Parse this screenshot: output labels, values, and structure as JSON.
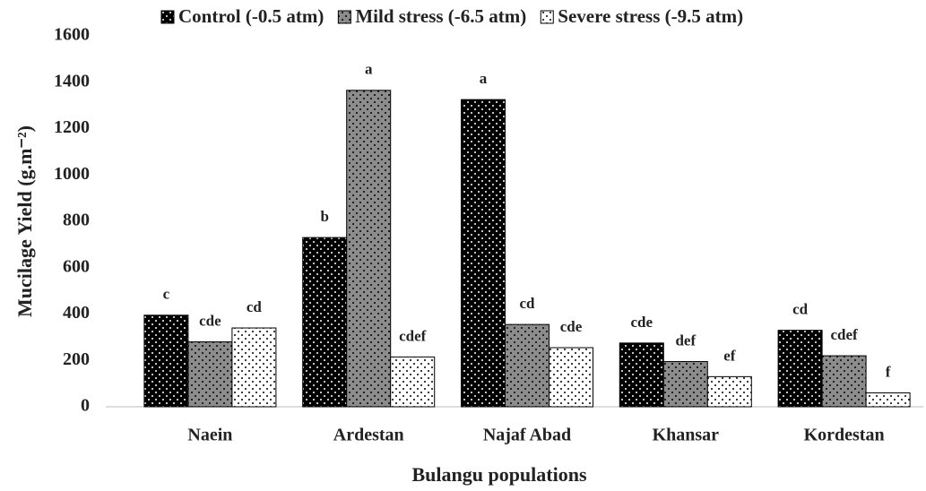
{
  "chart_data": {
    "type": "bar",
    "ylabel": "Mucilage Yield (g.m⁻²)",
    "xlabel": "Bulangu populations",
    "categories": [
      "Naein",
      "Ardestan",
      "Najaf Abad",
      "Khansar",
      "Kordestan"
    ],
    "series": [
      {
        "name": "Control (-0.5 atm)",
        "color": "#000000",
        "values": [
          395,
          730,
          1325,
          275,
          330
        ],
        "labels": [
          "c",
          "b",
          "a",
          "cde",
          "cd"
        ]
      },
      {
        "name": "Mild stress (-6.5 atm)",
        "color": "#8c8c8c",
        "values": [
          280,
          1365,
          355,
          195,
          220
        ],
        "labels": [
          "cde",
          "a",
          "cd",
          "def",
          "cdef"
        ]
      },
      {
        "name": "Severe stress (-9.5 atm)",
        "color": "#ffffff",
        "values": [
          340,
          215,
          255,
          130,
          60
        ],
        "labels": [
          "cd",
          "cdef",
          "cde",
          "ef",
          "f"
        ]
      }
    ],
    "ylim": [
      0,
      1600
    ],
    "yticks": [
      0,
      200,
      400,
      600,
      800,
      1000,
      1200,
      1400,
      1600
    ],
    "grid": false,
    "legend": "top"
  }
}
